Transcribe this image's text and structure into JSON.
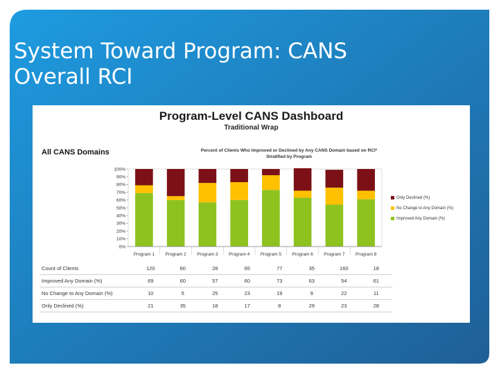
{
  "slide": {
    "title_line1": "System Toward Program: CANS",
    "title_line2": "Overall RCI"
  },
  "dashboard": {
    "title": "Program-Level CANS Dashboard",
    "subtitle": "Traditional Wrap",
    "section_label": "All CANS Domains",
    "chart_title_line1": "Percent of Clients Who Improved or Declined by Any CANS Domain based on RCI*",
    "chart_title_line2": "Stratified by Program"
  },
  "colors": {
    "improved": "#8dc21f",
    "no_change": "#ffc000",
    "declined": "#7b1116",
    "slide_blue": "#1e9be0",
    "slide_dark": "#1f5f96"
  },
  "chart_data": {
    "type": "bar",
    "stacked": true,
    "title": "Percent of Clients Who Improved or Declined by Any CANS Domain based on RCI* Stratified by Program",
    "categories": [
      "Program 1",
      "Program 2",
      "Program 3",
      "Program 4",
      "Program 5",
      "Program 6",
      "Program 7",
      "Program 8"
    ],
    "series": [
      {
        "name": "Improved Any Domain (%)",
        "values": [
          69,
          60,
          57,
          60,
          73,
          63,
          54,
          61
        ]
      },
      {
        "name": "No Change to Any Domain (%)",
        "values": [
          10,
          5,
          25,
          23,
          19,
          9,
          22,
          11
        ]
      },
      {
        "name": "Only Declined (%)",
        "values": [
          21,
          35,
          18,
          17,
          8,
          29,
          23,
          28
        ]
      }
    ],
    "legend_order": [
      "Only Declined (%)",
      "No Change to Any Domain (%)",
      "Improved Any Domain (%)"
    ],
    "ylim": [
      0,
      100
    ],
    "yticks": [
      "0%",
      "10%",
      "20%",
      "30%",
      "40%",
      "50%",
      "60%",
      "70%",
      "80%",
      "90%",
      "100%"
    ],
    "xlabel": "",
    "ylabel": "",
    "legend_position": "right"
  },
  "table": {
    "rows": [
      {
        "label": "Count of Clients",
        "values": [
          "120",
          "60",
          "28",
          "65",
          "77",
          "35",
          "160",
          "18"
        ]
      },
      {
        "label": "Improved Any Domain (%)",
        "values": [
          "69",
          "60",
          "57",
          "60",
          "73",
          "63",
          "54",
          "61"
        ]
      },
      {
        "label": "No Change to Any Domain (%)",
        "values": [
          "10",
          "5",
          "25",
          "23",
          "19",
          "9",
          "22",
          "11"
        ]
      },
      {
        "label": "Only Declined (%)",
        "values": [
          "21",
          "35",
          "18",
          "17",
          "8",
          "29",
          "23",
          "28"
        ]
      }
    ]
  }
}
